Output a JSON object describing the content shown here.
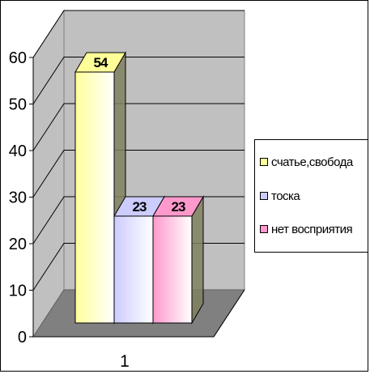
{
  "chart_data": {
    "type": "bar",
    "categories": [
      "1"
    ],
    "series": [
      {
        "name": "счатье,свобода",
        "values": [
          54
        ],
        "label": "54",
        "color": "#FFFF99"
      },
      {
        "name": "тоска",
        "values": [
          23
        ],
        "label": "23",
        "color": "#CCCCFF"
      },
      {
        "name": "нет восприятия",
        "values": [
          23
        ],
        "label": "23",
        "color": "#FF99CC"
      }
    ],
    "ylim": [
      0,
      60
    ],
    "yticks": [
      "0",
      "10",
      "20",
      "30",
      "40",
      "50",
      "60"
    ],
    "title": "",
    "xlabel": "",
    "ylabel": "",
    "grid": true,
    "three_d": true,
    "legend_position": "right",
    "wall_color": "#C0C0C0",
    "floor_color": "#808080"
  }
}
